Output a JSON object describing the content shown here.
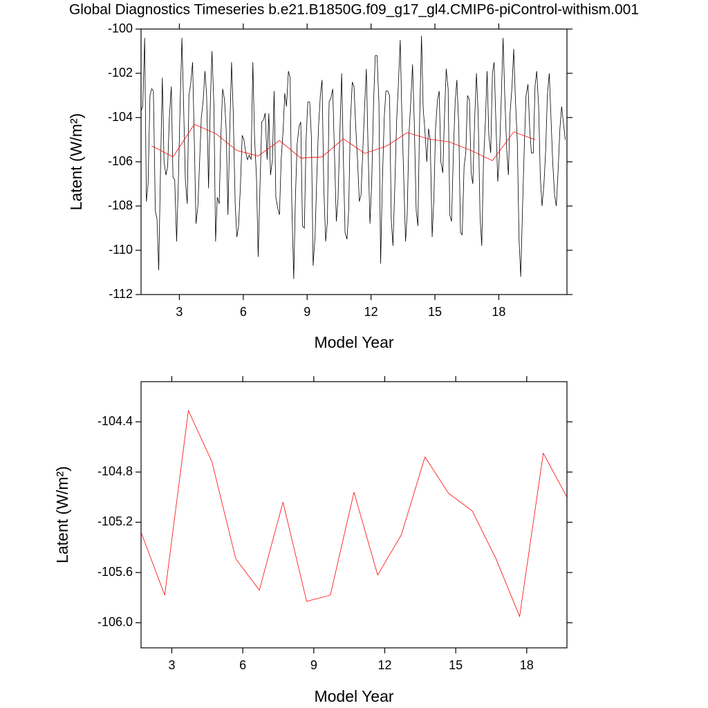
{
  "chart_data": [
    {
      "type": "line",
      "title": "Global Diagnostics Timeseries b.e21.B1850G.f09_g17_gl4.CMIP6-piControl-withism.001",
      "xlabel": "Model Year",
      "ylabel": "Latent (W/m²)",
      "xlim": [
        1.2,
        21.2
      ],
      "ylim": [
        -112,
        -100
      ],
      "xticks": [
        3,
        6,
        9,
        12,
        15,
        18
      ],
      "yticks": [
        -112,
        -110,
        -108,
        -106,
        -104,
        -102,
        -100
      ],
      "series": [
        {
          "color": "#000000",
          "x": [
            1.2,
            1.28,
            1.37,
            1.45,
            1.53,
            1.62,
            1.7,
            1.78,
            1.87,
            1.95,
            2.03,
            2.12,
            2.2,
            2.28,
            2.37,
            2.45,
            2.53,
            2.62,
            2.7,
            2.78,
            2.87,
            2.95,
            3.03,
            3.12,
            3.2,
            3.28,
            3.37,
            3.45,
            3.53,
            3.62,
            3.7,
            3.78,
            3.87,
            3.95,
            4.03,
            4.12,
            4.2,
            4.28,
            4.37,
            4.45,
            4.53,
            4.62,
            4.7,
            4.78,
            4.87,
            4.95,
            5.03,
            5.12,
            5.2,
            5.28,
            5.37,
            5.45,
            5.53,
            5.62,
            5.7,
            5.78,
            5.87,
            5.95,
            6.03,
            6.12,
            6.2,
            6.28,
            6.37,
            6.45,
            6.53,
            6.62,
            6.7,
            6.78,
            6.87,
            6.95,
            7.03,
            7.12,
            7.2,
            7.28,
            7.37,
            7.45,
            7.53,
            7.62,
            7.7,
            7.78,
            7.87,
            7.95,
            8.03,
            8.12,
            8.2,
            8.28,
            8.37,
            8.45,
            8.53,
            8.62,
            8.7,
            8.78,
            8.87,
            8.95,
            9.03,
            9.12,
            9.2,
            9.28,
            9.37,
            9.45,
            9.53,
            9.62,
            9.7,
            9.78,
            9.87,
            9.95,
            10.03,
            10.12,
            10.2,
            10.28,
            10.37,
            10.45,
            10.53,
            10.62,
            10.7,
            10.78,
            10.87,
            10.95,
            11.03,
            11.12,
            11.2,
            11.28,
            11.37,
            11.45,
            11.53,
            11.62,
            11.7,
            11.78,
            11.87,
            11.95,
            12.03,
            12.12,
            12.2,
            12.28,
            12.37,
            12.45,
            12.53,
            12.62,
            12.7,
            12.78,
            12.87,
            12.95,
            13.03,
            13.12,
            13.2,
            13.28,
            13.37,
            13.45,
            13.53,
            13.62,
            13.7,
            13.78,
            13.87,
            13.95,
            14.03,
            14.12,
            14.2,
            14.28,
            14.37,
            14.45,
            14.53,
            14.62,
            14.7,
            14.78,
            14.87,
            14.95,
            15.03,
            15.12,
            15.2,
            15.28,
            15.37,
            15.45,
            15.53,
            15.62,
            15.7,
            15.78,
            15.87,
            15.95,
            16.03,
            16.12,
            16.2,
            16.28,
            16.37,
            16.45,
            16.53,
            16.62,
            16.7,
            16.78,
            16.87,
            16.95,
            17.03,
            17.12,
            17.2,
            17.28,
            17.37,
            17.45,
            17.53,
            17.62,
            17.7,
            17.78,
            17.87,
            17.95,
            18.03,
            18.12,
            18.2,
            18.28,
            18.37,
            18.45,
            18.53,
            18.62,
            18.7,
            18.78,
            18.87,
            18.95,
            19.03,
            19.12,
            19.2,
            19.28,
            19.37,
            19.45,
            19.53,
            19.62,
            19.7,
            19.78,
            19.87,
            19.95,
            20.03,
            20.12,
            20.2,
            20.28,
            20.37,
            20.45,
            20.53,
            20.62,
            20.7,
            20.78,
            20.87,
            20.95,
            21.03,
            21.12
          ],
          "values": [
            -103.7,
            -103.5,
            -100.4,
            -107.8,
            -107,
            -103,
            -102.7,
            -102.8,
            -108.2,
            -108.6,
            -110.9,
            -106,
            -102.2,
            -106,
            -106.6,
            -106.2,
            -104,
            -102.6,
            -106.7,
            -106.8,
            -109.6,
            -107,
            -103.6,
            -100.4,
            -103.5,
            -106.8,
            -107.9,
            -103,
            -102.5,
            -101.5,
            -105,
            -108.8,
            -108,
            -106,
            -104,
            -103.2,
            -101.9,
            -103,
            -107.2,
            -103.5,
            -101,
            -103.4,
            -109.6,
            -107.6,
            -107.9,
            -104.8,
            -102.7,
            -103.2,
            -104.6,
            -108.4,
            -104.4,
            -101.5,
            -103.8,
            -107.9,
            -109.4,
            -108.9,
            -107,
            -104.8,
            -105,
            -105.6,
            -105.9,
            -105.7,
            -105.9,
            -101.5,
            -104.9,
            -106.7,
            -110.3,
            -107.3,
            -104.2,
            -104.1,
            -103.8,
            -105.9,
            -103.8,
            -106.6,
            -105.9,
            -102.8,
            -107.6,
            -108.1,
            -108.4,
            -105.9,
            -104.6,
            -102.9,
            -103.5,
            -101.9,
            -102.2,
            -107.9,
            -111.3,
            -107.6,
            -105.2,
            -104.4,
            -104.2,
            -108.9,
            -109,
            -105,
            -103.3,
            -103.3,
            -104.9,
            -110.7,
            -109.4,
            -106.8,
            -104.5,
            -103,
            -102.3,
            -107.1,
            -109.6,
            -108.7,
            -103.3,
            -103.1,
            -102.7,
            -105.5,
            -108.7,
            -107.7,
            -104.9,
            -102,
            -105.8,
            -109.2,
            -109.5,
            -108.2,
            -104.2,
            -102.4,
            -102.6,
            -104.4,
            -106,
            -107.8,
            -107.5,
            -105.3,
            -103.5,
            -101.8,
            -105.8,
            -108.8,
            -107,
            -103.3,
            -101.2,
            -101.2,
            -103.3,
            -110.6,
            -107,
            -104,
            -102.8,
            -102.8,
            -103,
            -108.6,
            -109.8,
            -107,
            -104.2,
            -102.6,
            -100.5,
            -104,
            -106.5,
            -109.6,
            -108.3,
            -104.8,
            -103.2,
            -101.6,
            -104.2,
            -108.2,
            -108.9,
            -104.2,
            -100.3,
            -103.6,
            -104.6,
            -106,
            -104.5,
            -105,
            -109.4,
            -107.7,
            -104.5,
            -103.2,
            -102.8,
            -106,
            -106.5,
            -103.9,
            -101.8,
            -102.7,
            -108.4,
            -108.7,
            -105.5,
            -103.3,
            -102.3,
            -104.4,
            -109.2,
            -109.3,
            -106.2,
            -105.6,
            -103,
            -103.2,
            -106.5,
            -107,
            -104,
            -102,
            -103.8,
            -108.5,
            -109.8,
            -106,
            -104.2,
            -101.9,
            -104.8,
            -105.6,
            -102,
            -101.5,
            -104.4,
            -106.9,
            -105.7,
            -103,
            -100.4,
            -103,
            -105.4,
            -106.6,
            -103.8,
            -102.6,
            -100.9,
            -103.2,
            -105.1,
            -109.5,
            -111.2,
            -107.9,
            -105.2,
            -103,
            -102.5,
            -104.5,
            -105.6,
            -105.6,
            -102.6,
            -101.9,
            -103.5,
            -106.7,
            -108,
            -107,
            -105.5,
            -103,
            -102,
            -104,
            -106,
            -107.5,
            -108,
            -106.5,
            -104.5,
            -103.5,
            -104.2,
            -105
          ]
        },
        {
          "color": "#ff0000",
          "x": [
            1.7,
            2.7,
            3.7,
            4.7,
            5.7,
            6.7,
            7.7,
            8.7,
            9.7,
            10.7,
            11.7,
            12.7,
            13.7,
            14.7,
            15.7,
            16.7,
            17.7,
            18.7,
            19.7
          ],
          "values": [
            -105.28,
            -105.78,
            -104.31,
            -104.72,
            -105.49,
            -105.74,
            -105.04,
            -105.83,
            -105.78,
            -104.96,
            -105.62,
            -105.3,
            -104.68,
            -104.97,
            -105.11,
            -105.49,
            -105.95,
            -104.65,
            -105.0
          ]
        }
      ]
    },
    {
      "type": "line",
      "xlabel": "Model Year",
      "ylabel": "Latent (W/m²)",
      "xlim": [
        1.7,
        19.7
      ],
      "ylim": [
        -106.2,
        -104.08
      ],
      "xticks": [
        3,
        6,
        9,
        12,
        15,
        18
      ],
      "yticks": [
        {
          "value": -106,
          "label": "-106.0"
        },
        -105.6,
        -105.2,
        -104.8,
        -104.4
      ],
      "series": [
        {
          "color": "#ff0000",
          "x": [
            1.7,
            2.7,
            3.7,
            4.7,
            5.7,
            6.7,
            7.7,
            8.7,
            9.7,
            10.7,
            11.7,
            12.7,
            13.7,
            14.7,
            15.7,
            16.7,
            17.7,
            18.7,
            19.7
          ],
          "values": [
            -105.28,
            -105.78,
            -104.31,
            -104.72,
            -105.49,
            -105.74,
            -105.04,
            -105.83,
            -105.78,
            -104.96,
            -105.62,
            -105.3,
            -104.68,
            -104.97,
            -105.11,
            -105.49,
            -105.95,
            -104.65,
            -105.0
          ]
        }
      ]
    }
  ]
}
